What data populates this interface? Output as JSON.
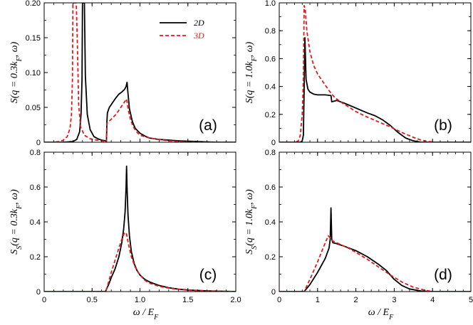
{
  "chart_data": [
    {
      "type": "line",
      "panel_tag": "(a)",
      "ylabel": "S(q = 0.3k_F, ω)",
      "xlabel": "",
      "xlim": [
        0,
        2.0
      ],
      "ylim": [
        0,
        0.2
      ],
      "xticks": [
        0,
        0.5,
        1.0,
        1.5,
        2.0
      ],
      "xtick_labels": [
        "",
        "",
        "",
        "",
        ""
      ],
      "yticks": [
        0,
        0.05,
        0.1,
        0.15,
        0.2
      ],
      "ytick_labels": [
        "0",
        "0.05",
        "0.10",
        "0.15",
        "0.20"
      ],
      "legend": [
        {
          "name": "2D",
          "color": "#000000",
          "style": "solid"
        },
        {
          "name": "3D",
          "color": "#e31a1c",
          "style": "dashed"
        }
      ],
      "series": [
        {
          "name": "2D",
          "color": "#000000",
          "style": "solid",
          "x": [
            0.0,
            0.2,
            0.3,
            0.34,
            0.37,
            0.385,
            0.395,
            0.4,
            0.405,
            0.41,
            0.42,
            0.43,
            0.45,
            0.48,
            0.52,
            0.56,
            0.6,
            0.64,
            0.65,
            0.655,
            0.66,
            0.68,
            0.7,
            0.72,
            0.75,
            0.78,
            0.81,
            0.84,
            0.855,
            0.865,
            0.875,
            0.89,
            0.92,
            0.95,
            1.0,
            1.05,
            1.1,
            1.2,
            1.3,
            1.4,
            1.6,
            1.8,
            2.0
          ],
          "y": [
            0.0,
            0.0,
            0.001,
            0.004,
            0.015,
            0.04,
            0.09,
            0.2,
            0.2,
            0.2,
            0.2,
            0.095,
            0.04,
            0.018,
            0.008,
            0.005,
            0.003,
            0.002,
            0.001,
            0.03,
            0.042,
            0.05,
            0.054,
            0.058,
            0.064,
            0.069,
            0.072,
            0.076,
            0.08,
            0.086,
            0.07,
            0.048,
            0.03,
            0.02,
            0.013,
            0.009,
            0.006,
            0.004,
            0.003,
            0.002,
            0.001,
            0.0,
            0.0
          ]
        },
        {
          "name": "3D",
          "color": "#e31a1c",
          "style": "dashed",
          "x": [
            0.0,
            0.1,
            0.15,
            0.2,
            0.24,
            0.27,
            0.285,
            0.295,
            0.3,
            0.305,
            0.31,
            0.315,
            0.325,
            0.335,
            0.345,
            0.36,
            0.38,
            0.42,
            0.48,
            0.55,
            0.6,
            0.64,
            0.65,
            0.655,
            0.66,
            0.7,
            0.75,
            0.8,
            0.83,
            0.86,
            0.88,
            0.9,
            0.93,
            0.97,
            1.0,
            1.1,
            1.2,
            1.3,
            1.4,
            1.6,
            1.8,
            2.0
          ],
          "y": [
            0.0,
            0.0,
            0.001,
            0.003,
            0.008,
            0.02,
            0.04,
            0.09,
            0.2,
            0.2,
            0.2,
            0.2,
            0.2,
            0.2,
            0.15,
            0.055,
            0.022,
            0.01,
            0.005,
            0.003,
            0.002,
            0.001,
            0.0,
            0.026,
            0.028,
            0.033,
            0.04,
            0.05,
            0.056,
            0.062,
            0.045,
            0.033,
            0.022,
            0.014,
            0.01,
            0.006,
            0.004,
            0.002,
            0.001,
            0.0,
            0.0,
            0.0
          ]
        }
      ]
    },
    {
      "type": "line",
      "panel_tag": "(b)",
      "ylabel": "S(q = 1.0k_F, ω)",
      "xlabel": "",
      "xlim": [
        0,
        5
      ],
      "ylim": [
        0,
        1.0
      ],
      "xticks": [
        0,
        1,
        2,
        3,
        4,
        5
      ],
      "xtick_labels": [
        "",
        "",
        "",
        "",
        "",
        ""
      ],
      "yticks": [
        0,
        0.2,
        0.4,
        0.6,
        0.8,
        1.0
      ],
      "ytick_labels": [
        "0",
        "0.2",
        "0.4",
        "0.6",
        "0.8",
        "1.0"
      ],
      "series": [
        {
          "name": "2D",
          "color": "#000000",
          "style": "solid",
          "x": [
            0.0,
            0.4,
            0.55,
            0.6,
            0.63,
            0.65,
            0.67,
            0.7,
            0.75,
            0.8,
            0.9,
            1.0,
            1.1,
            1.2,
            1.35,
            1.37,
            1.5,
            1.7,
            2.0,
            2.3,
            2.5,
            2.7,
            2.9,
            3.1,
            3.3,
            3.5,
            3.7,
            4.0,
            5.0
          ],
          "y": [
            0.0,
            0.0,
            0.0,
            0.01,
            0.05,
            0.38,
            0.75,
            0.45,
            0.38,
            0.36,
            0.345,
            0.34,
            0.34,
            0.34,
            0.335,
            0.29,
            0.3,
            0.28,
            0.245,
            0.21,
            0.19,
            0.16,
            0.12,
            0.07,
            0.03,
            0.01,
            0.0,
            0.0,
            0.0
          ]
        },
        {
          "name": "3D",
          "color": "#e31a1c",
          "style": "dashed",
          "x": [
            0.0,
            0.4,
            0.5,
            0.55,
            0.6,
            0.63,
            0.65,
            0.68,
            0.72,
            0.8,
            0.9,
            1.0,
            1.1,
            1.2,
            1.3,
            1.45,
            1.6,
            1.8,
            2.0,
            2.3,
            2.6,
            2.9,
            3.2,
            3.5,
            3.7,
            3.9,
            4.1,
            5.0
          ],
          "y": [
            0.0,
            0.0,
            0.01,
            0.05,
            0.2,
            0.45,
            0.98,
            0.95,
            0.8,
            0.65,
            0.55,
            0.49,
            0.45,
            0.41,
            0.37,
            0.32,
            0.29,
            0.255,
            0.22,
            0.18,
            0.145,
            0.11,
            0.07,
            0.035,
            0.015,
            0.005,
            0.0,
            0.0
          ]
        }
      ]
    },
    {
      "type": "line",
      "panel_tag": "(c)",
      "ylabel": "S_S(q = 0.3k_F, ω)",
      "xlabel": "ω / E_F",
      "xlim": [
        0,
        2.0
      ],
      "ylim": [
        0,
        0.8
      ],
      "xticks": [
        0,
        0.5,
        1.0,
        1.5,
        2.0
      ],
      "xtick_labels": [
        "0",
        "0.5",
        "1.0",
        "1.5",
        "2.0"
      ],
      "yticks": [
        0,
        0.2,
        0.4,
        0.6,
        0.8
      ],
      "ytick_labels": [
        "0",
        "0.2",
        "0.4",
        "0.6",
        "0.8"
      ],
      "series": [
        {
          "name": "2D",
          "color": "#000000",
          "style": "solid",
          "x": [
            0.0,
            0.64,
            0.66,
            0.68,
            0.7,
            0.74,
            0.78,
            0.81,
            0.83,
            0.845,
            0.855,
            0.86,
            0.865,
            0.875,
            0.89,
            0.91,
            0.94,
            0.97,
            1.0,
            1.05,
            1.1,
            1.2,
            1.3,
            1.4,
            1.5,
            1.7,
            2.0
          ],
          "y": [
            0.0,
            0.0,
            0.025,
            0.05,
            0.08,
            0.13,
            0.2,
            0.28,
            0.36,
            0.46,
            0.6,
            0.72,
            0.6,
            0.44,
            0.32,
            0.23,
            0.16,
            0.12,
            0.095,
            0.07,
            0.055,
            0.035,
            0.022,
            0.014,
            0.009,
            0.004,
            0.0
          ]
        },
        {
          "name": "3D",
          "color": "#e31a1c",
          "style": "dashed",
          "x": [
            0.0,
            0.64,
            0.66,
            0.7,
            0.74,
            0.78,
            0.81,
            0.84,
            0.86,
            0.88,
            0.91,
            0.95,
            1.0,
            1.05,
            1.1,
            1.2,
            1.3,
            1.4,
            1.5,
            1.7,
            2.0
          ],
          "y": [
            0.0,
            0.0,
            0.03,
            0.11,
            0.18,
            0.25,
            0.3,
            0.34,
            0.33,
            0.27,
            0.2,
            0.14,
            0.095,
            0.065,
            0.048,
            0.03,
            0.02,
            0.013,
            0.008,
            0.003,
            0.0
          ]
        }
      ]
    },
    {
      "type": "line",
      "panel_tag": "(d)",
      "ylabel": "S_S(q = 1.0k_F, ω)",
      "xlabel": "ω / E_F",
      "xlim": [
        0,
        5
      ],
      "ylim": [
        0,
        0.8
      ],
      "xticks": [
        0,
        1,
        2,
        3,
        4,
        5
      ],
      "xtick_labels": [
        "0",
        "1",
        "2",
        "3",
        "4",
        "5"
      ],
      "yticks": [
        0,
        0.2,
        0.4,
        0.6,
        0.8
      ],
      "ytick_labels": [
        "0",
        "0.2",
        "0.4",
        "0.6",
        "0.8"
      ],
      "series": [
        {
          "name": "2D",
          "color": "#000000",
          "style": "solid",
          "x": [
            0.0,
            0.65,
            0.8,
            1.0,
            1.2,
            1.3,
            1.33,
            1.35,
            1.37,
            1.4,
            1.5,
            1.7,
            2.0,
            2.3,
            2.6,
            2.8,
            3.0,
            3.2,
            3.4,
            3.7,
            4.0,
            5.0
          ],
          "y": [
            0.0,
            0.0,
            0.04,
            0.11,
            0.19,
            0.25,
            0.3,
            0.48,
            0.3,
            0.28,
            0.275,
            0.26,
            0.235,
            0.2,
            0.155,
            0.12,
            0.07,
            0.035,
            0.015,
            0.003,
            0.0,
            0.0
          ]
        },
        {
          "name": "3D",
          "color": "#e31a1c",
          "style": "dashed",
          "x": [
            0.0,
            0.65,
            0.8,
            1.0,
            1.2,
            1.28,
            1.32,
            1.4,
            1.6,
            1.8,
            2.0,
            2.3,
            2.6,
            2.9,
            3.2,
            3.5,
            3.8,
            4.0,
            5.0
          ],
          "y": [
            0.0,
            0.0,
            0.07,
            0.17,
            0.28,
            0.32,
            0.31,
            0.29,
            0.27,
            0.25,
            0.225,
            0.185,
            0.14,
            0.095,
            0.055,
            0.025,
            0.008,
            0.0,
            0.0
          ]
        }
      ]
    }
  ]
}
